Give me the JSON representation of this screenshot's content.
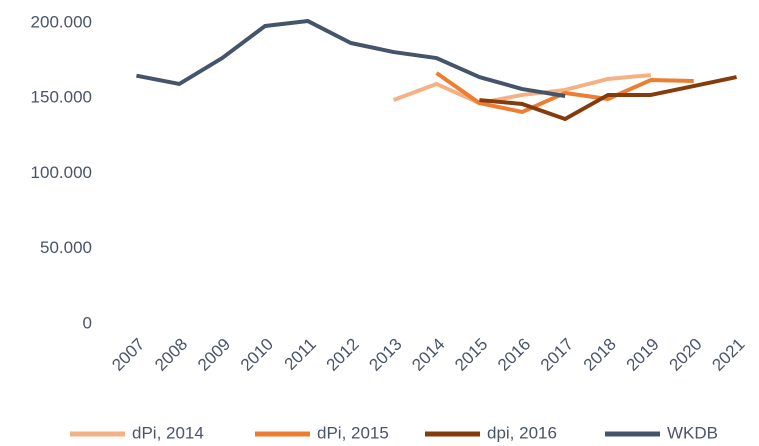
{
  "chart_data": {
    "type": "line",
    "categories": [
      "2007",
      "2008",
      "2009",
      "2010",
      "2011",
      "2012",
      "2013",
      "2014",
      "2015",
      "2016",
      "2017",
      "2018",
      "2019",
      "2020",
      "2021"
    ],
    "series": [
      {
        "name": "dPi, 2014",
        "color": "#f4b183",
        "values": [
          null,
          null,
          null,
          null,
          null,
          null,
          148800,
          159500,
          146800,
          152200,
          155500,
          162800,
          165400,
          null,
          null
        ]
      },
      {
        "name": "dPi, 2015",
        "color": "#ed7d31",
        "values": [
          null,
          null,
          null,
          null,
          null,
          null,
          null,
          166800,
          146800,
          140900,
          153500,
          149500,
          162100,
          161500,
          null
        ]
      },
      {
        "name": "dpi, 2016",
        "color": "#843c0c",
        "values": [
          null,
          null,
          null,
          null,
          null,
          null,
          null,
          null,
          148800,
          146200,
          136200,
          152200,
          152200,
          158100,
          164100
        ]
      },
      {
        "name": "WKDB",
        "color": "#44546a",
        "values": [
          165000,
          159500,
          176700,
          198000,
          201300,
          186700,
          180700,
          176700,
          164100,
          156100,
          151500,
          null,
          null,
          null,
          null
        ]
      }
    ],
    "ylim": [
      0,
      200000
    ],
    "yticks": [
      0,
      {
        "value": 50000,
        "label": "50.000"
      },
      {
        "value": 100000,
        "label": "100.000"
      },
      {
        "value": 150000,
        "label": "150.000"
      },
      {
        "value": 200000,
        "label": "200.000"
      }
    ],
    "grid": false,
    "legend": "bottom"
  }
}
